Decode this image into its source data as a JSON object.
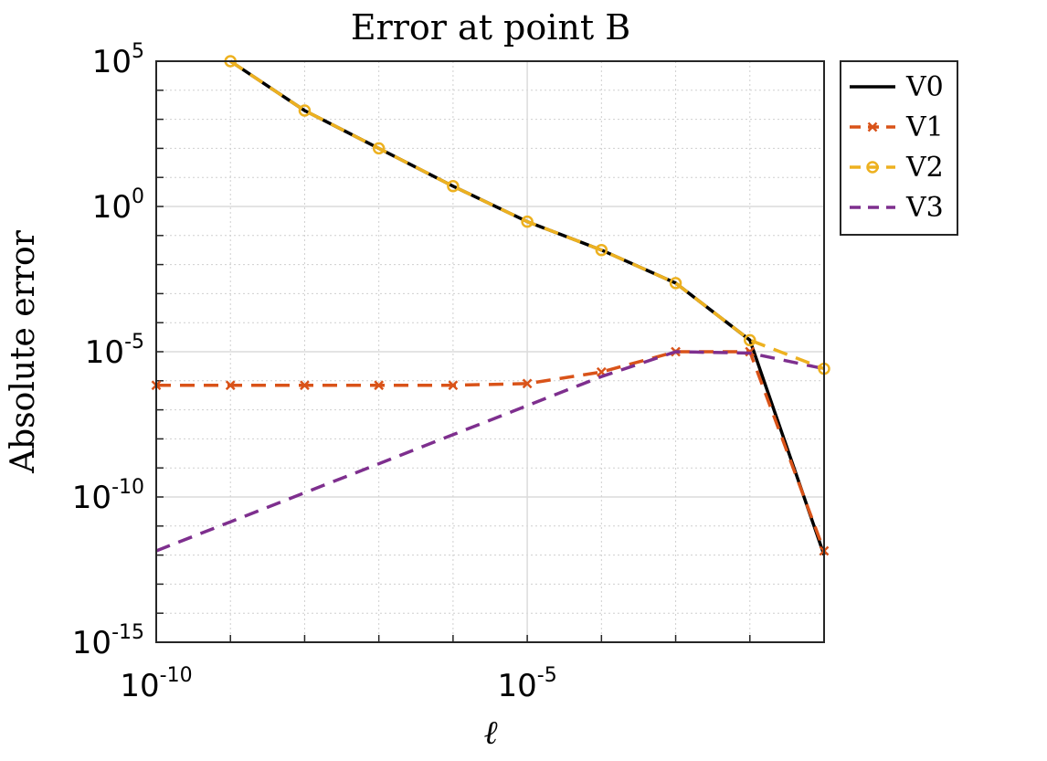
{
  "chart_data": {
    "type": "line",
    "title": "Error at point B",
    "xlabel": "ℓ",
    "ylabel": "Absolute error",
    "xscale": "log",
    "yscale": "log",
    "xlim": [
      1e-10,
      0.1
    ],
    "ylim": [
      1e-15,
      100000
    ],
    "x_ticks": [
      {
        "value": 1e-10,
        "base": "10",
        "exp": "-10"
      },
      {
        "value": 1e-05,
        "base": "10",
        "exp": "-5"
      }
    ],
    "y_ticks": [
      {
        "value": 100000,
        "base": "10",
        "exp": "5"
      },
      {
        "value": 1,
        "base": "10",
        "exp": "0"
      },
      {
        "value": 1e-05,
        "base": "10",
        "exp": "-5"
      },
      {
        "value": 1e-10,
        "base": "10",
        "exp": "-10"
      },
      {
        "value": 1e-15,
        "base": "10",
        "exp": "-15"
      }
    ],
    "grid": true,
    "legend_position": "outside-top-right",
    "series": [
      {
        "name": "V0",
        "color": "#000000",
        "line": "solid",
        "marker": "none",
        "x": [
          1e-09,
          1e-08,
          1e-07,
          1e-06,
          1e-05,
          0.0001,
          0.001,
          0.01,
          0.1
        ],
        "y": [
          100000,
          2000,
          100,
          5,
          0.3,
          0.0316,
          0.0023,
          2.5e-05,
          1e-12
        ]
      },
      {
        "name": "V1",
        "color": "#D95319",
        "line": "dashed",
        "marker": "x",
        "x": [
          1e-10,
          1e-09,
          1e-08,
          1e-07,
          1e-06,
          1e-05,
          0.0001,
          0.001,
          0.01,
          0.1
        ],
        "y": [
          7e-07,
          7e-07,
          7e-07,
          7e-07,
          7e-07,
          8e-07,
          2e-06,
          1e-05,
          1e-05,
          1.4e-12
        ]
      },
      {
        "name": "V2",
        "color": "#EDB120",
        "line": "dashed",
        "marker": "o",
        "x": [
          1e-09,
          1e-08,
          1e-07,
          1e-06,
          1e-05,
          0.0001,
          0.001,
          0.01,
          0.1
        ],
        "y": [
          100000,
          2000,
          100,
          5,
          0.3,
          0.0316,
          0.0023,
          2.5e-05,
          2.6e-06
        ]
      },
      {
        "name": "V3",
        "color": "#7E2F8E",
        "line": "dashed",
        "marker": "none",
        "x": [
          1e-10,
          1e-09,
          1e-08,
          1e-07,
          1e-06,
          1e-05,
          0.0001,
          0.001,
          0.01,
          0.1
        ],
        "y": [
          1.4e-12,
          1.4e-11,
          1.4e-10,
          1.4e-09,
          1.4e-08,
          1.4e-07,
          1.4e-06,
          1e-05,
          9e-06,
          2.6e-06
        ]
      }
    ]
  }
}
